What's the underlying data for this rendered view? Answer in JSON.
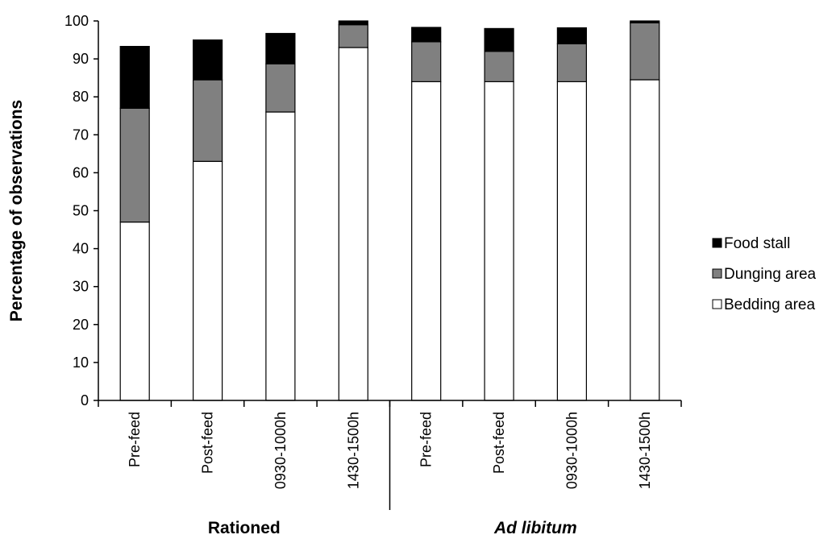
{
  "chart_data": {
    "type": "bar",
    "stacked": true,
    "ylabel": "Percentage of observations",
    "ylim": [
      0,
      100
    ],
    "yticks": [
      0,
      10,
      20,
      30,
      40,
      50,
      60,
      70,
      80,
      90,
      100
    ],
    "categories": [
      "Pre-feed",
      "Post-feed",
      "0930-1000h",
      "1430-1500h",
      "Pre-feed",
      "Post-feed",
      "0930-1000h",
      "1430-1500h"
    ],
    "groups": [
      {
        "label": "Rationed",
        "italic": false,
        "span": [
          0,
          3
        ]
      },
      {
        "label": "Ad libitum",
        "italic": true,
        "span": [
          4,
          7
        ]
      }
    ],
    "series": [
      {
        "name": "Bedding area",
        "color": "#ffffff",
        "values": [
          47,
          63,
          76,
          93,
          84,
          84,
          84,
          84.5
        ]
      },
      {
        "name": "Dunging area",
        "color": "#808080",
        "values": [
          30,
          21.5,
          12.7,
          6,
          10.5,
          8,
          10,
          15
        ]
      },
      {
        "name": "Food stall",
        "color": "#000000",
        "values": [
          16.3,
          10.5,
          8,
          1,
          3.8,
          6,
          4.2,
          0.5
        ]
      }
    ],
    "legend": {
      "position": "right",
      "order": [
        "Food stall",
        "Dunging area",
        "Bedding area"
      ]
    },
    "grid": false
  }
}
